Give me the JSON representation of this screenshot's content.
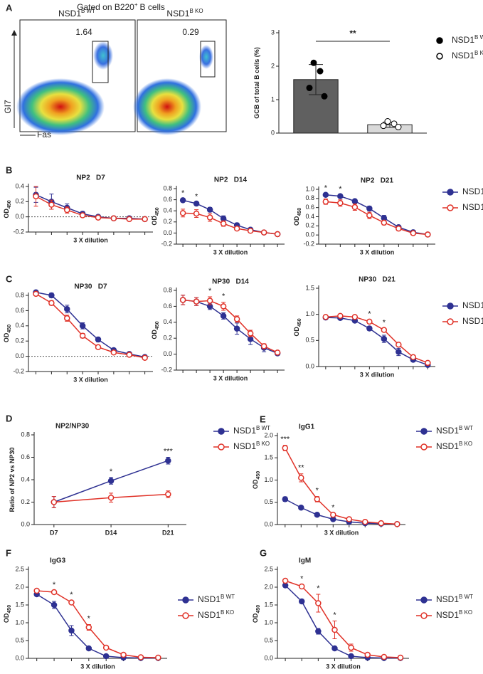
{
  "chart_data": [
    {
      "type": "flow",
      "panel": "A",
      "title": "Gated on B220",
      "title_sup": "+",
      "title_end": "B cells",
      "ylabel": "GI7",
      "xlabel": "Fas",
      "plots": [
        {
          "label": "NSD1",
          "label_sup": "B WT",
          "gate_value": 1.64
        },
        {
          "label": "NSD1",
          "label_sup": "B KO",
          "gate_value": 0.29
        }
      ]
    },
    {
      "type": "bar",
      "ylabel": "GCB of total B cells (%)",
      "ylim": [
        0,
        3
      ],
      "yticks": [
        0,
        1,
        2,
        3
      ],
      "legend": true,
      "annotation": "**",
      "series": [
        {
          "name": "NSD1",
          "name_sup": "B WT",
          "value": 1.6,
          "error": 0.45,
          "points": [
            2.1,
            1.85,
            1.35,
            1.1
          ],
          "color": "#606060",
          "marker_fill": "#000000"
        },
        {
          "name": "NSD1",
          "name_sup": "B KO",
          "value": 0.25,
          "error": 0.08,
          "points": [
            0.35,
            0.28,
            0.22,
            0.18
          ],
          "color": "#d9d9d9",
          "marker_fill": "#ffffff"
        }
      ]
    },
    {
      "type": "line",
      "panel": "B",
      "title": "NP2   D7",
      "ylabel": "OD",
      "ylabel_sub": "450",
      "xlabel": "3 X dilution",
      "categories": [
        null,
        null,
        null,
        null,
        null,
        null,
        null,
        null
      ],
      "ylim": [
        -0.2,
        0.4
      ],
      "yticks": [
        0.4,
        0.2,
        {
          "value": 0,
          "label": "0.0"
        },
        -0.2
      ],
      "hline": 0,
      "series": [
        {
          "name": "NSD1",
          "name_sup": "B WT",
          "color": "#2e3192",
          "marker_fill": "#2e3192",
          "values": [
            0.29,
            0.2,
            0.12,
            0.04,
            0.0,
            -0.02,
            -0.02,
            -0.03
          ],
          "errors": [
            0.1,
            0.1,
            0.05,
            0.03,
            0.01,
            0.01,
            0.01,
            0.01
          ]
        },
        {
          "name": "NSD1",
          "name_sup": "B KO",
          "color": "#e03127",
          "marker_fill": "#ffffff",
          "values": [
            0.27,
            0.16,
            0.09,
            0.02,
            -0.01,
            -0.02,
            -0.03,
            -0.03
          ],
          "errors": [
            0.13,
            0.06,
            0.04,
            0.02,
            0.01,
            0.01,
            0.01,
            0.01
          ]
        }
      ]
    },
    {
      "type": "line",
      "title": "NP2   D14",
      "ylabel": "OD",
      "ylabel_sub": "450",
      "xlabel": "3 X dilution",
      "categories": [
        null,
        null,
        null,
        null,
        null,
        null,
        null,
        null
      ],
      "ylim": [
        -0.2,
        0.8
      ],
      "yticks": [
        0.8,
        0.6,
        0.4,
        0.2,
        {
          "value": 0,
          "label": "0.0"
        },
        -0.2
      ],
      "annotations": [
        {
          "index": 0,
          "text": "*"
        },
        {
          "index": 1,
          "text": "*"
        }
      ],
      "series": [
        {
          "name": "NSD1",
          "name_sup": "B WT",
          "color": "#2e3192",
          "marker_fill": "#2e3192",
          "values": [
            0.59,
            0.53,
            0.42,
            0.26,
            0.14,
            0.06,
            0.01,
            -0.02
          ],
          "errors": [
            0.02,
            0.02,
            0.04,
            0.05,
            0.04,
            0.03,
            0.02,
            0.01
          ]
        },
        {
          "name": "NSD1",
          "name_sup": "B KO",
          "color": "#e03127",
          "marker_fill": "#ffffff",
          "values": [
            0.36,
            0.35,
            0.28,
            0.17,
            0.08,
            0.04,
            0.01,
            -0.02
          ],
          "errors": [
            0.07,
            0.07,
            0.07,
            0.05,
            0.03,
            0.02,
            0.01,
            0.01
          ]
        }
      ]
    },
    {
      "type": "line",
      "title": "NP2   D21",
      "ylabel": "OD",
      "ylabel_sub": "450",
      "xlabel": "3 X dilution",
      "categories": [
        null,
        null,
        null,
        null,
        null,
        null,
        null,
        null
      ],
      "legend": true,
      "ylim": [
        -0.2,
        1.0
      ],
      "yticks": [
        {
          "value": 1,
          "label": "1.0"
        },
        0.8,
        0.6,
        0.4,
        0.2,
        {
          "value": 0,
          "label": "0.0"
        },
        -0.2
      ],
      "annotations": [
        {
          "index": 0,
          "text": "*"
        },
        {
          "index": 1,
          "text": "*"
        }
      ],
      "series": [
        {
          "name": "NSD1",
          "name_sup": "B WT",
          "color": "#2e3192",
          "marker_fill": "#2e3192",
          "values": [
            0.88,
            0.85,
            0.74,
            0.58,
            0.37,
            0.17,
            0.06,
            0.01
          ],
          "errors": [
            0.02,
            0.02,
            0.04,
            0.05,
            0.06,
            0.04,
            0.02,
            0.01
          ]
        },
        {
          "name": "NSD1",
          "name_sup": "B KO",
          "color": "#e03127",
          "marker_fill": "#ffffff",
          "values": [
            0.73,
            0.7,
            0.61,
            0.43,
            0.27,
            0.14,
            0.04,
            0.01
          ],
          "errors": [
            0.06,
            0.07,
            0.07,
            0.07,
            0.05,
            0.04,
            0.02,
            0.01
          ]
        }
      ]
    },
    {
      "type": "line",
      "panel": "C",
      "title": "NP30   D7",
      "ylabel": "OD",
      "ylabel_sub": "450",
      "xlabel": "3 X dilution",
      "categories": [
        null,
        null,
        null,
        null,
        null,
        null,
        null,
        null
      ],
      "ylim": [
        -0.2,
        0.8
      ],
      "yticks": [
        0.8,
        0.6,
        0.4,
        0.2,
        {
          "value": 0,
          "label": "0.0"
        },
        -0.2
      ],
      "hline": 0,
      "series": [
        {
          "name": "NSD1",
          "name_sup": "B WT",
          "color": "#2e3192",
          "marker_fill": "#2e3192",
          "values": [
            0.84,
            0.8,
            0.62,
            0.4,
            0.22,
            0.08,
            0.03,
            -0.01
          ],
          "errors": [
            0.02,
            0.03,
            0.05,
            0.04,
            0.03,
            0.02,
            0.01,
            0.01
          ]
        },
        {
          "name": "NSD1",
          "name_sup": "B KO",
          "color": "#e03127",
          "marker_fill": "#ffffff",
          "values": [
            0.82,
            0.7,
            0.5,
            0.27,
            0.12,
            0.05,
            0.02,
            -0.02
          ],
          "errors": [
            0.02,
            0.03,
            0.04,
            0.03,
            0.02,
            0.02,
            0.01,
            0.01
          ]
        }
      ]
    },
    {
      "type": "line",
      "title": "NP30   D14",
      "ylabel": "OD",
      "ylabel_sub": "450",
      "xlabel": "3 X dilution",
      "categories": [
        null,
        null,
        null,
        null,
        null,
        null,
        null,
        null
      ],
      "ylim": [
        -0.2,
        0.8
      ],
      "yticks": [
        0.8,
        0.6,
        0.4,
        0.2,
        {
          "value": 0,
          "label": "0.0"
        },
        -0.2
      ],
      "annotations": [
        {
          "index": 2,
          "text": "*"
        },
        {
          "index": 3,
          "text": "*"
        }
      ],
      "series": [
        {
          "name": "NSD1",
          "name_sup": "B WT",
          "color": "#2e3192",
          "marker_fill": "#2e3192",
          "values": [
            0.68,
            0.66,
            0.6,
            0.48,
            0.32,
            0.19,
            0.08,
            0.01
          ],
          "errors": [
            0.06,
            0.05,
            0.04,
            0.04,
            0.07,
            0.07,
            0.05,
            0.02
          ]
        },
        {
          "name": "NSD1",
          "name_sup": "B KO",
          "color": "#e03127",
          "marker_fill": "#ffffff",
          "values": [
            0.68,
            0.66,
            0.67,
            0.6,
            0.44,
            0.26,
            0.1,
            0.02
          ],
          "errors": [
            0.06,
            0.05,
            0.05,
            0.05,
            0.04,
            0.04,
            0.03,
            0.02
          ]
        }
      ]
    },
    {
      "type": "line",
      "title": "NP30   D21",
      "ylabel": "OD",
      "ylabel_sub": "450",
      "xlabel": "3 X dilution",
      "categories": [
        null,
        null,
        null,
        null,
        null,
        null,
        null,
        null
      ],
      "legend": true,
      "ylim": [
        0,
        1.5
      ],
      "yticks": [
        {
          "value": 1.5,
          "label": "1.5"
        },
        {
          "value": 1,
          "label": "1.0"
        },
        0.5,
        {
          "value": 0,
          "label": "0.0"
        }
      ],
      "annotations": [
        {
          "index": 3,
          "text": "*"
        },
        {
          "index": 4,
          "text": "*"
        }
      ],
      "series": [
        {
          "name": "NSD1",
          "name_sup": "B WT",
          "color": "#2e3192",
          "marker_fill": "#2e3192",
          "values": [
            0.94,
            0.93,
            0.88,
            0.73,
            0.53,
            0.28,
            0.13,
            0.03
          ],
          "errors": [
            0.02,
            0.02,
            0.03,
            0.04,
            0.07,
            0.07,
            0.04,
            0.02
          ]
        },
        {
          "name": "NSD1",
          "name_sup": "B KO",
          "color": "#e03127",
          "marker_fill": "#ffffff",
          "values": [
            0.95,
            0.97,
            0.95,
            0.86,
            0.7,
            0.42,
            0.18,
            0.07
          ],
          "errors": [
            0.02,
            0.03,
            0.03,
            0.03,
            0.03,
            0.03,
            0.03,
            0.02
          ]
        }
      ]
    },
    {
      "type": "line",
      "panel": "D",
      "title": "NP2/NP30",
      "ylabel": "Ratio of NP2 vs NP30",
      "categories": [
        "D7",
        "D14",
        "D21"
      ],
      "legend": true,
      "ylim": [
        0,
        0.8
      ],
      "yticks": [
        0.8,
        0.6,
        0.4,
        0.2,
        {
          "value": 0,
          "label": "0.0"
        }
      ],
      "annotations": [
        {
          "index": 1,
          "text": "*"
        },
        {
          "index": 2,
          "text": "***"
        }
      ],
      "series": [
        {
          "name": "NSD1",
          "name_sup": "B WT",
          "color": "#2e3192",
          "marker_fill": "#2e3192",
          "values": [
            0.2,
            0.39,
            0.57
          ],
          "errors": [
            0.05,
            0.03,
            0.03
          ]
        },
        {
          "name": "NSD1",
          "name_sup": "B KO",
          "color": "#e03127",
          "marker_fill": "#ffffff",
          "values": [
            0.2,
            0.24,
            0.27
          ],
          "errors": [
            0.05,
            0.04,
            0.03
          ]
        }
      ]
    },
    {
      "type": "line",
      "panel": "E",
      "title": "IgG1",
      "ylabel": "OD",
      "ylabel_sub": "450",
      "xlabel": "3 X dilution",
      "categories": [
        null,
        null,
        null,
        null,
        null,
        null,
        null,
        null
      ],
      "legend": true,
      "ylim": [
        0,
        2
      ],
      "yticks": [
        {
          "value": 2,
          "label": "2.0"
        },
        1.5,
        {
          "value": 1,
          "label": "1.0"
        },
        0.5,
        {
          "value": 0,
          "label": "0.0"
        }
      ],
      "annotations": [
        {
          "index": 0,
          "text": "***"
        },
        {
          "index": 1,
          "text": "**"
        },
        {
          "index": 2,
          "text": "*"
        },
        {
          "index": 3,
          "text": "*"
        }
      ],
      "series": [
        {
          "name": "NSD1",
          "name_sup": "B WT",
          "color": "#2e3192",
          "marker_fill": "#2e3192",
          "values": [
            0.57,
            0.38,
            0.22,
            0.12,
            0.06,
            0.03,
            0.02,
            0.01
          ],
          "errors": [
            0.05,
            0.04,
            0.02,
            0.02,
            0.01,
            0.01,
            0.01,
            0.01
          ]
        },
        {
          "name": "NSD1",
          "name_sup": "B KO",
          "color": "#e03127",
          "marker_fill": "#ffffff",
          "values": [
            1.72,
            1.05,
            0.57,
            0.22,
            0.12,
            0.06,
            0.03,
            0.01
          ],
          "errors": [
            0.06,
            0.09,
            0.06,
            0.03,
            0.02,
            0.01,
            0.01,
            0.01
          ]
        }
      ]
    },
    {
      "type": "line",
      "panel": "F",
      "title": "IgG3",
      "ylabel": "OD",
      "ylabel_sub": "450",
      "xlabel": "3 X dilution",
      "categories": [
        null,
        null,
        null,
        null,
        null,
        null,
        null,
        null
      ],
      "legend": true,
      "ylim": [
        0,
        2.5
      ],
      "yticks": [
        2.5,
        {
          "value": 2,
          "label": "2.0"
        },
        1.5,
        {
          "value": 1,
          "label": "1.0"
        },
        0.5,
        {
          "value": 0,
          "label": "0.0"
        }
      ],
      "annotations": [
        {
          "index": 1,
          "text": "*"
        },
        {
          "index": 2,
          "text": "*"
        },
        {
          "index": 3,
          "text": "*"
        }
      ],
      "series": [
        {
          "name": "NSD1",
          "name_sup": "B WT",
          "color": "#2e3192",
          "marker_fill": "#2e3192",
          "values": [
            1.8,
            1.5,
            0.78,
            0.28,
            0.06,
            0.02,
            0.01,
            0.01
          ],
          "errors": [
            0.04,
            0.1,
            0.14,
            0.05,
            0.02,
            0.01,
            0.01,
            0.01
          ]
        },
        {
          "name": "NSD1",
          "name_sup": "B KO",
          "color": "#e03127",
          "marker_fill": "#ffffff",
          "values": [
            1.9,
            1.86,
            1.57,
            0.87,
            0.3,
            0.1,
            0.03,
            0.02
          ],
          "errors": [
            0.03,
            0.04,
            0.05,
            0.08,
            0.04,
            0.02,
            0.01,
            0.01
          ]
        }
      ]
    },
    {
      "type": "line",
      "panel": "G",
      "title": "IgM",
      "ylabel": "OD",
      "ylabel_sub": "450",
      "xlabel": "3 X dilution",
      "categories": [
        null,
        null,
        null,
        null,
        null,
        null,
        null,
        null
      ],
      "legend": true,
      "ylim": [
        0,
        2.5
      ],
      "yticks": [
        2.5,
        {
          "value": 2,
          "label": "2.0"
        },
        1.5,
        {
          "value": 1,
          "label": "1.0"
        },
        0.5,
        {
          "value": 0,
          "label": "0.0"
        }
      ],
      "annotations": [
        {
          "index": 1,
          "text": "*"
        },
        {
          "index": 2,
          "text": "*"
        },
        {
          "index": 3,
          "text": "*"
        }
      ],
      "series": [
        {
          "name": "NSD1",
          "name_sup": "B WT",
          "color": "#2e3192",
          "marker_fill": "#2e3192",
          "values": [
            2.05,
            1.6,
            0.76,
            0.28,
            0.06,
            0.02,
            0.01,
            0.01
          ],
          "errors": [
            0.04,
            0.06,
            0.08,
            0.04,
            0.02,
            0.01,
            0.01,
            0.01
          ]
        },
        {
          "name": "NSD1",
          "name_sup": "B KO",
          "color": "#e03127",
          "marker_fill": "#ffffff",
          "values": [
            2.18,
            2.02,
            1.55,
            0.8,
            0.3,
            0.1,
            0.04,
            0.02
          ],
          "errors": [
            0.04,
            0.05,
            0.25,
            0.25,
            0.1,
            0.04,
            0.02,
            0.01
          ]
        }
      ]
    }
  ]
}
